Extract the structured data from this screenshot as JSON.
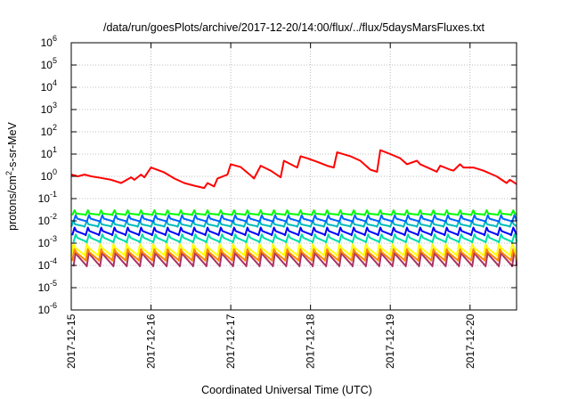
{
  "chart_data": {
    "type": "line",
    "title": "/data/run/goesPlots/archive/2017-12-20/14:00/flux/../flux/5daysMarsFluxes.txt",
    "xlabel": "Coordinated Universal Time (UTC)",
    "ylabel": "protons/cm2-s-sr-MeV",
    "ylabel_parts": {
      "pre": "protons/cm",
      "sup": "2",
      "post": "-s-sr-MeV"
    },
    "xscale": "date",
    "xlim": [
      "2017-12-15T00:00",
      "2017-12-20T14:00"
    ],
    "x_ticks": [
      "2017-12-15",
      "2017-12-16",
      "2017-12-17",
      "2017-12-18",
      "2017-12-19",
      "2017-12-20"
    ],
    "yscale": "log",
    "ylim": [
      1e-06,
      1000000.0
    ],
    "y_ticks": [
      {
        "base": "10",
        "exp": "-6"
      },
      {
        "base": "10",
        "exp": "-5"
      },
      {
        "base": "10",
        "exp": "-4"
      },
      {
        "base": "10",
        "exp": "-3"
      },
      {
        "base": "10",
        "exp": "-2"
      },
      {
        "base": "10",
        "exp": "-1"
      },
      {
        "base": "10",
        "exp": "0"
      },
      {
        "base": "10",
        "exp": "1"
      },
      {
        "base": "10",
        "exp": "2"
      },
      {
        "base": "10",
        "exp": "3"
      },
      {
        "base": "10",
        "exp": "4"
      },
      {
        "base": "10",
        "exp": "5"
      },
      {
        "base": "10",
        "exp": "6"
      }
    ],
    "grid": true,
    "legend": false,
    "series": [
      {
        "color": "#ff0000",
        "x": [
          "2017-12-15T00:00",
          "2017-12-15T02:00",
          "2017-12-15T04:00",
          "2017-12-15T06:00",
          "2017-12-15T09:00",
          "2017-12-15T12:00",
          "2017-12-15T15:00",
          "2017-12-15T18:00",
          "2017-12-15T19:00",
          "2017-12-15T21:00",
          "2017-12-15T22:00",
          "2017-12-16T00:00",
          "2017-12-16T01:00",
          "2017-12-16T04:00",
          "2017-12-16T07:00",
          "2017-12-16T10:00",
          "2017-12-16T13:00",
          "2017-12-16T16:00",
          "2017-12-16T17:00",
          "2017-12-16T19:00",
          "2017-12-16T20:00",
          "2017-12-16T23:00",
          "2017-12-17T00:00",
          "2017-12-17T03:00",
          "2017-12-17T06:00",
          "2017-12-17T07:00",
          "2017-12-17T09:00",
          "2017-12-17T12:00",
          "2017-12-17T15:00",
          "2017-12-17T16:00",
          "2017-12-17T20:00",
          "2017-12-17T21:00",
          "2017-12-17T23:00",
          "2017-12-18T02:00",
          "2017-12-18T05:00",
          "2017-12-18T07:00",
          "2017-12-18T08:00",
          "2017-12-18T12:00",
          "2017-12-18T15:00",
          "2017-12-18T18:00",
          "2017-12-18T20:00",
          "2017-12-18T21:00",
          "2017-12-19T00:00",
          "2017-12-19T03:00",
          "2017-12-19T05:00",
          "2017-12-19T08:00",
          "2017-12-19T09:00",
          "2017-12-19T12:00",
          "2017-12-19T14:00",
          "2017-12-19T15:00",
          "2017-12-19T18:00",
          "2017-12-19T19:00",
          "2017-12-19T21:00",
          "2017-12-19T22:00",
          "2017-12-20T01:00",
          "2017-12-20T04:00",
          "2017-12-20T08:00",
          "2017-12-20T11:00",
          "2017-12-20T12:00",
          "2017-12-20T14:00"
        ],
        "y": [
          1.2,
          1.0,
          1.2,
          1.0,
          0.85,
          0.7,
          0.5,
          0.9,
          0.7,
          1.2,
          0.9,
          2.5,
          2.2,
          1.5,
          0.8,
          0.5,
          0.38,
          0.3,
          0.5,
          0.35,
          0.8,
          1.2,
          3.5,
          2.6,
          1.1,
          0.8,
          3.0,
          1.8,
          0.9,
          5.0,
          2.5,
          8.0,
          6.5,
          4.5,
          3.0,
          2.5,
          12.0,
          8.0,
          5.0,
          2.0,
          1.6,
          15.0,
          10.0,
          6.5,
          3.5,
          5.0,
          3.5,
          2.2,
          1.6,
          3.0,
          2.0,
          1.8,
          3.5,
          2.5,
          2.5,
          1.8,
          1.0,
          0.5,
          0.7,
          0.45
        ]
      },
      {
        "color": "#00ff00",
        "baseline": 0.02,
        "spike": 0.03,
        "x": [],
        "y": []
      },
      {
        "color": "#0066ff",
        "baseline": 0.01,
        "spike": 0.018,
        "x": [],
        "y": []
      },
      {
        "color": "#00bbbb",
        "baseline": 0.006,
        "spike": 0.01,
        "x": [],
        "y": []
      },
      {
        "color": "#0000ff",
        "baseline": 0.0025,
        "spike": 0.005,
        "x": [],
        "y": []
      },
      {
        "color": "#00ddaa",
        "baseline": 0.0012,
        "spike": 0.0025,
        "x": [],
        "y": []
      },
      {
        "color": "#ffff00",
        "baseline": 0.0003,
        "spike": 0.0009,
        "x": [],
        "y": []
      },
      {
        "color": "#ff8800",
        "baseline": 0.00018,
        "spike": 0.00055,
        "x": [],
        "y": []
      },
      {
        "color": "#aa3366",
        "baseline": 0.0001,
        "spike": 0.0004,
        "x": [],
        "y": []
      }
    ]
  }
}
